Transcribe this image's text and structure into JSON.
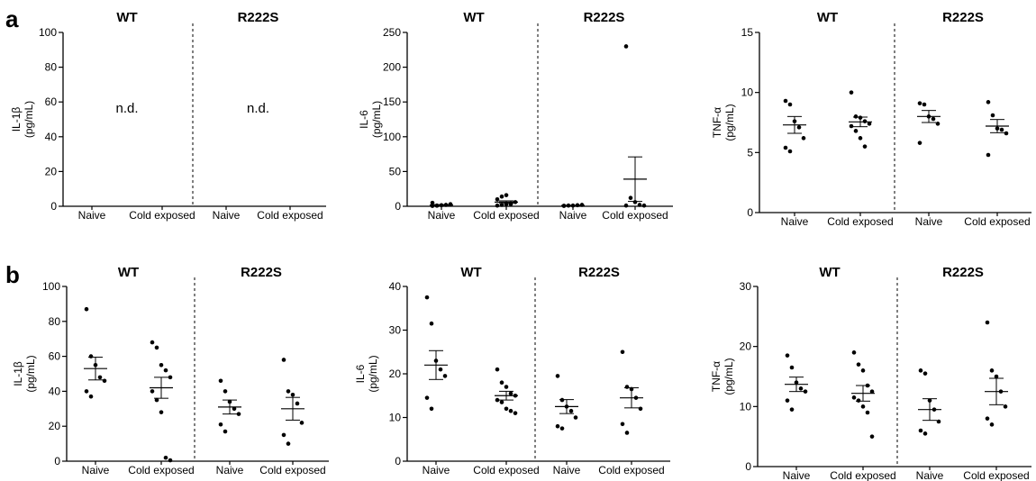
{
  "panel_labels": [
    "a",
    "b"
  ],
  "chart_data": [
    {
      "panel": "a",
      "type": "scatter",
      "ylabel": "IL-1β",
      "yunit": "(pg/mL)",
      "ylim": [
        0,
        100
      ],
      "yticks": [
        "0",
        "20",
        "40",
        "60",
        "80",
        "100"
      ],
      "groups": [
        "WT",
        "R222S"
      ],
      "categories": [
        "Naive",
        "Cold exposed",
        "Naive",
        "Cold exposed"
      ],
      "not_detected_label": "n.d.",
      "series": [
        {
          "group": "WT",
          "category": "Naive",
          "points": [],
          "mean": null,
          "sem": null
        },
        {
          "group": "WT",
          "category": "Cold exposed",
          "points": [],
          "mean": null,
          "sem": null
        },
        {
          "group": "R222S",
          "category": "Naive",
          "points": [],
          "mean": null,
          "sem": null
        },
        {
          "group": "R222S",
          "category": "Cold exposed",
          "points": [],
          "mean": null,
          "sem": null
        }
      ]
    },
    {
      "panel": "a",
      "type": "scatter",
      "ylabel": "IL-6",
      "yunit": "(pg/mL)",
      "ylim": [
        0,
        250
      ],
      "yticks": [
        "0",
        "50",
        "100",
        "150",
        "200",
        "250"
      ],
      "groups": [
        "WT",
        "R222S"
      ],
      "categories": [
        "Naive",
        "Cold exposed",
        "Naive",
        "Cold exposed"
      ],
      "series": [
        {
          "group": "WT",
          "category": "Naive",
          "points": [
            0.5,
            1,
            1.5,
            2,
            3,
            5,
            0.8
          ],
          "mean": 1.8,
          "sem": 0.6
        },
        {
          "group": "WT",
          "category": "Cold exposed",
          "points": [
            1,
            2,
            3,
            4,
            6,
            10,
            14,
            16,
            3
          ],
          "mean": 6,
          "sem": 1.8
        },
        {
          "group": "R222S",
          "category": "Naive",
          "points": [
            0.5,
            1,
            1,
            1.5,
            2,
            0.8
          ],
          "mean": 1.2,
          "sem": 0.3
        },
        {
          "group": "R222S",
          "category": "Cold exposed",
          "points": [
            230,
            12,
            6,
            2,
            1,
            1
          ],
          "mean": 39,
          "sem": 32
        }
      ]
    },
    {
      "panel": "a",
      "type": "scatter",
      "ylabel": "TNF-α",
      "yunit": "(pg/mL)",
      "ylim": [
        0,
        15
      ],
      "yticks": [
        "0",
        "5",
        "10",
        "15"
      ],
      "groups": [
        "WT",
        "R222S"
      ],
      "categories": [
        "Naive",
        "Cold exposed",
        "Naive",
        "Cold exposed"
      ],
      "series": [
        {
          "group": "WT",
          "category": "Naive",
          "points": [
            9.3,
            9.0,
            7.6,
            7.1,
            6.2,
            5.4,
            5.1
          ],
          "mean": 7.3,
          "sem": 0.7
        },
        {
          "group": "WT",
          "category": "Cold exposed",
          "points": [
            10.0,
            8.0,
            7.9,
            7.6,
            7.4,
            7.2,
            6.8,
            6.2,
            5.5
          ],
          "mean": 7.55,
          "sem": 0.4
        },
        {
          "group": "R222S",
          "category": "Naive",
          "points": [
            9.1,
            9.0,
            8.0,
            7.8,
            7.4,
            5.8
          ],
          "mean": 8.0,
          "sem": 0.5
        },
        {
          "group": "R222S",
          "category": "Cold exposed",
          "points": [
            9.2,
            8.1,
            7.0,
            6.9,
            6.6,
            4.8
          ],
          "mean": 7.2,
          "sem": 0.55
        }
      ]
    },
    {
      "panel": "b",
      "type": "scatter",
      "ylabel": "IL-1β",
      "yunit": "(pg/mL)",
      "ylim": [
        0,
        100
      ],
      "yticks": [
        "0",
        "20",
        "40",
        "60",
        "80",
        "100"
      ],
      "groups": [
        "WT",
        "R222S"
      ],
      "categories": [
        "Naive",
        "Cold exposed",
        "Naive",
        "Cold exposed"
      ],
      "series": [
        {
          "group": "WT",
          "category": "Naive",
          "points": [
            87,
            60,
            55,
            48,
            46,
            40,
            37
          ],
          "mean": 53,
          "sem": 6.5
        },
        {
          "group": "WT",
          "category": "Cold exposed",
          "points": [
            68,
            65,
            55,
            52,
            48,
            40,
            35,
            28,
            2,
            0.5
          ],
          "mean": 42,
          "sem": 6
        },
        {
          "group": "R222S",
          "category": "Naive",
          "points": [
            46,
            40,
            34,
            30,
            27,
            21,
            17
          ],
          "mean": 31,
          "sem": 4
        },
        {
          "group": "R222S",
          "category": "Cold exposed",
          "points": [
            58,
            40,
            38,
            33,
            22,
            15,
            10
          ],
          "mean": 30,
          "sem": 6.5
        }
      ]
    },
    {
      "panel": "b",
      "type": "scatter",
      "ylabel": "IL-6",
      "yunit": "(pg/mL)",
      "ylim": [
        0,
        40
      ],
      "yticks": [
        "0",
        "10",
        "20",
        "30",
        "40"
      ],
      "groups": [
        "WT",
        "R222S"
      ],
      "categories": [
        "Naive",
        "Cold exposed",
        "Naive",
        "Cold exposed"
      ],
      "series": [
        {
          "group": "WT",
          "category": "Naive",
          "points": [
            37.5,
            31.5,
            23,
            21,
            19.5,
            14.5,
            12
          ],
          "mean": 22,
          "sem": 3.3
        },
        {
          "group": "WT",
          "category": "Cold exposed",
          "points": [
            21,
            18,
            17,
            15.5,
            15,
            14,
            13.5,
            12,
            11.5,
            11
          ],
          "mean": 15,
          "sem": 1.0
        },
        {
          "group": "R222S",
          "category": "Naive",
          "points": [
            19.5,
            14,
            12.5,
            11.5,
            10,
            8,
            7.5
          ],
          "mean": 12.5,
          "sem": 1.6
        },
        {
          "group": "R222S",
          "category": "Cold exposed",
          "points": [
            25,
            17,
            16.5,
            14.5,
            12,
            8.5,
            6.5
          ],
          "mean": 14.5,
          "sem": 2.3
        }
      ]
    },
    {
      "panel": "b",
      "type": "scatter",
      "ylabel": "TNF-α",
      "yunit": "(pg/mL)",
      "ylim": [
        0,
        30
      ],
      "yticks": [
        "0",
        "10",
        "20",
        "30"
      ],
      "groups": [
        "WT",
        "R222S"
      ],
      "categories": [
        "Naive",
        "Cold exposed",
        "Naive",
        "Cold exposed"
      ],
      "series": [
        {
          "group": "WT",
          "category": "Naive",
          "points": [
            18.5,
            16.5,
            14,
            13,
            12.5,
            11,
            9.5
          ],
          "mean": 13.7,
          "sem": 1.2
        },
        {
          "group": "WT",
          "category": "Cold exposed",
          "points": [
            19,
            17,
            16,
            13.5,
            12.5,
            11.5,
            11,
            10,
            9,
            5
          ],
          "mean": 12.2,
          "sem": 1.3
        },
        {
          "group": "R222S",
          "category": "Naive",
          "points": [
            16,
            15.5,
            11,
            9.5,
            7.5,
            6,
            5.5
          ],
          "mean": 9.5,
          "sem": 1.8
        },
        {
          "group": "R222S",
          "category": "Cold exposed",
          "points": [
            24,
            16,
            15,
            12.5,
            10,
            8,
            7
          ],
          "mean": 12.5,
          "sem": 2.2
        }
      ]
    }
  ]
}
